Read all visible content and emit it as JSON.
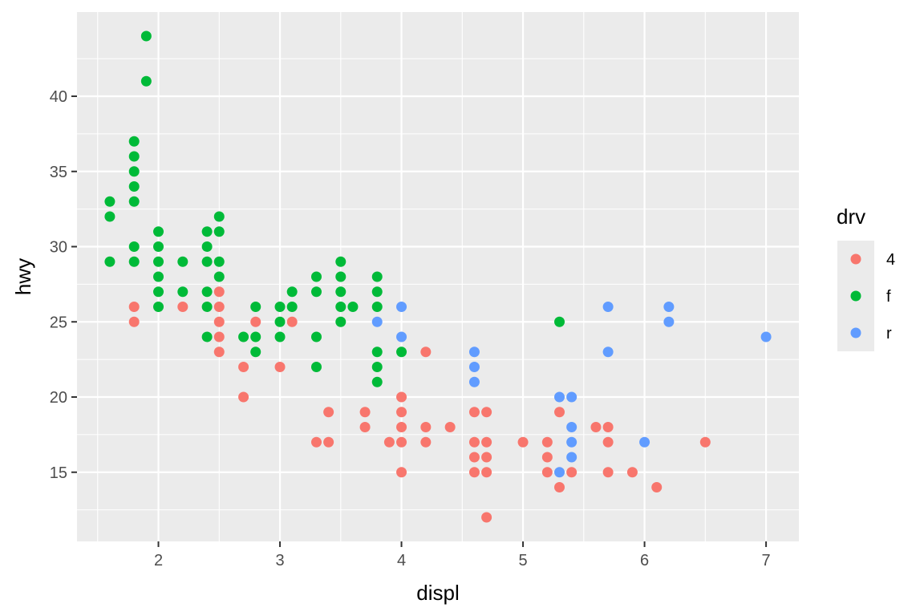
{
  "chart_data": {
    "type": "scatter",
    "xlabel": "displ",
    "ylabel": "hwy",
    "xlim": [
      1.33,
      7.27
    ],
    "ylim": [
      10.4,
      45.6
    ],
    "x_ticks": [
      2,
      3,
      4,
      5,
      6,
      7
    ],
    "x_tick_labels": [
      "2",
      "3",
      "4",
      "5",
      "6",
      "7"
    ],
    "y_ticks": [
      15,
      20,
      25,
      30,
      35,
      40
    ],
    "y_tick_labels": [
      "15",
      "20",
      "25",
      "30",
      "35",
      "40"
    ],
    "grid": true,
    "legend": {
      "title": "drv",
      "placement": "right",
      "entries": [
        {
          "label": "4",
          "color": "#F8766D"
        },
        {
          "label": "f",
          "color": "#00BA38"
        },
        {
          "label": "r",
          "color": "#619CFF"
        }
      ]
    },
    "series": [
      {
        "name": "4",
        "color": "#F8766D",
        "points": [
          [
            1.8,
            26
          ],
          [
            1.8,
            25
          ],
          [
            2.2,
            26
          ],
          [
            2.5,
            27
          ],
          [
            2.5,
            26
          ],
          [
            2.5,
            25
          ],
          [
            2.5,
            24
          ],
          [
            2.5,
            23
          ],
          [
            2.7,
            22
          ],
          [
            2.7,
            20
          ],
          [
            2.8,
            25
          ],
          [
            3.0,
            22
          ],
          [
            3.1,
            25
          ],
          [
            3.3,
            17
          ],
          [
            3.4,
            19
          ],
          [
            3.4,
            17
          ],
          [
            3.7,
            19
          ],
          [
            3.7,
            18
          ],
          [
            3.9,
            17
          ],
          [
            4.0,
            20
          ],
          [
            4.0,
            19
          ],
          [
            4.0,
            18
          ],
          [
            4.0,
            17
          ],
          [
            4.0,
            15
          ],
          [
            4.2,
            23
          ],
          [
            4.2,
            18
          ],
          [
            4.2,
            17
          ],
          [
            4.4,
            18
          ],
          [
            4.6,
            19
          ],
          [
            4.6,
            17
          ],
          [
            4.6,
            16
          ],
          [
            4.6,
            15
          ],
          [
            4.7,
            19
          ],
          [
            4.7,
            17
          ],
          [
            4.7,
            16
          ],
          [
            4.7,
            15
          ],
          [
            4.7,
            12
          ],
          [
            5.0,
            17
          ],
          [
            5.2,
            17
          ],
          [
            5.2,
            16
          ],
          [
            5.2,
            15
          ],
          [
            5.3,
            19
          ],
          [
            5.3,
            14
          ],
          [
            5.4,
            15
          ],
          [
            5.6,
            18
          ],
          [
            5.7,
            18
          ],
          [
            5.7,
            17
          ],
          [
            5.7,
            15
          ],
          [
            5.9,
            15
          ],
          [
            6.1,
            14
          ],
          [
            6.5,
            17
          ]
        ]
      },
      {
        "name": "f",
        "color": "#00BA38",
        "points": [
          [
            1.6,
            33
          ],
          [
            1.6,
            32
          ],
          [
            1.6,
            29
          ],
          [
            1.8,
            37
          ],
          [
            1.8,
            36
          ],
          [
            1.8,
            35
          ],
          [
            1.8,
            34
          ],
          [
            1.8,
            33
          ],
          [
            1.8,
            30
          ],
          [
            1.8,
            29
          ],
          [
            1.9,
            44
          ],
          [
            1.9,
            41
          ],
          [
            2.0,
            31
          ],
          [
            2.0,
            30
          ],
          [
            2.0,
            29
          ],
          [
            2.0,
            28
          ],
          [
            2.0,
            27
          ],
          [
            2.0,
            26
          ],
          [
            2.2,
            29
          ],
          [
            2.2,
            27
          ],
          [
            2.4,
            31
          ],
          [
            2.4,
            30
          ],
          [
            2.4,
            29
          ],
          [
            2.4,
            27
          ],
          [
            2.4,
            26
          ],
          [
            2.4,
            24
          ],
          [
            2.5,
            32
          ],
          [
            2.5,
            31
          ],
          [
            2.5,
            29
          ],
          [
            2.5,
            28
          ],
          [
            2.7,
            24
          ],
          [
            2.8,
            26
          ],
          [
            2.8,
            24
          ],
          [
            2.8,
            23
          ],
          [
            3.0,
            26
          ],
          [
            3.0,
            25
          ],
          [
            3.0,
            24
          ],
          [
            3.1,
            27
          ],
          [
            3.1,
            26
          ],
          [
            3.3,
            28
          ],
          [
            3.3,
            27
          ],
          [
            3.3,
            24
          ],
          [
            3.3,
            22
          ],
          [
            3.5,
            29
          ],
          [
            3.5,
            28
          ],
          [
            3.5,
            27
          ],
          [
            3.5,
            26
          ],
          [
            3.5,
            25
          ],
          [
            3.6,
            26
          ],
          [
            3.8,
            28
          ],
          [
            3.8,
            27
          ],
          [
            3.8,
            26
          ],
          [
            3.8,
            23
          ],
          [
            3.8,
            22
          ],
          [
            3.8,
            21
          ],
          [
            4.0,
            23
          ],
          [
            5.3,
            25
          ]
        ]
      },
      {
        "name": "r",
        "color": "#619CFF",
        "points": [
          [
            3.8,
            25
          ],
          [
            4.0,
            26
          ],
          [
            4.0,
            24
          ],
          [
            4.6,
            23
          ],
          [
            4.6,
            22
          ],
          [
            4.6,
            21
          ],
          [
            5.3,
            20
          ],
          [
            5.3,
            15
          ],
          [
            5.4,
            20
          ],
          [
            5.4,
            18
          ],
          [
            5.4,
            17
          ],
          [
            5.4,
            16
          ],
          [
            5.7,
            26
          ],
          [
            5.7,
            23
          ],
          [
            6.0,
            17
          ],
          [
            6.2,
            26
          ],
          [
            6.2,
            25
          ],
          [
            7.0,
            24
          ]
        ]
      }
    ]
  }
}
